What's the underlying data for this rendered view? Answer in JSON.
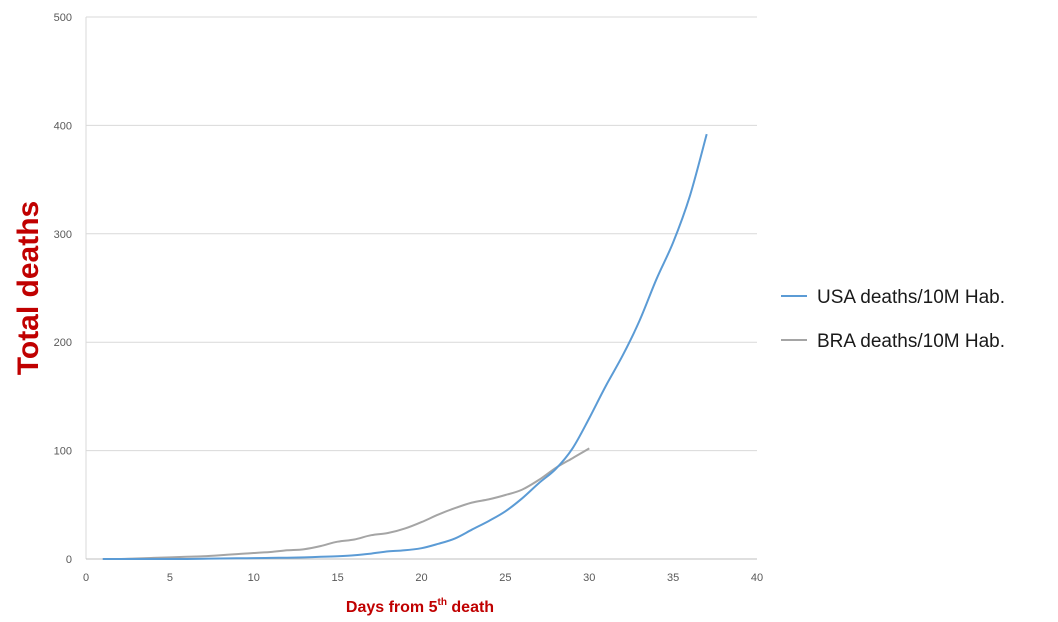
{
  "chart_data": {
    "type": "line",
    "title": "",
    "ylabel": "Total deaths",
    "xlabel": {
      "before": "Days from 5",
      "sup": "th",
      "after": " death"
    },
    "label_color": "#c00000",
    "xlim": [
      0,
      40
    ],
    "ylim": [
      0,
      500
    ],
    "xticks": [
      0,
      5,
      10,
      15,
      20,
      25,
      30,
      35,
      40
    ],
    "yticks": [
      0,
      100,
      200,
      300,
      400,
      500
    ],
    "grid": "horizontal",
    "legend_position": "right",
    "series": [
      {
        "name": "USA deaths/10M Hab.",
        "color": "#5b9bd5",
        "x": [
          1,
          2,
          3,
          4,
          5,
          6,
          7,
          8,
          9,
          10,
          11,
          12,
          13,
          14,
          15,
          16,
          17,
          18,
          19,
          20,
          21,
          22,
          23,
          24,
          25,
          26,
          27,
          28,
          29,
          30,
          31,
          32,
          33,
          34,
          35,
          36,
          37
        ],
        "y": [
          0,
          0,
          0,
          0,
          0,
          0,
          0.3,
          0.5,
          0.7,
          0.8,
          1,
          1.2,
          1.5,
          2,
          2.5,
          3.5,
          5,
          7,
          8,
          10,
          14,
          19,
          27,
          35,
          44,
          56,
          70,
          83,
          102,
          130,
          160,
          188,
          220,
          258,
          292,
          335,
          392
        ]
      },
      {
        "name": "BRA deaths/10M Hab.",
        "color": "#a5a5a5",
        "x": [
          1,
          2,
          3,
          4,
          5,
          6,
          7,
          8,
          9,
          10,
          11,
          12,
          13,
          14,
          15,
          16,
          17,
          18,
          19,
          20,
          21,
          22,
          23,
          24,
          25,
          26,
          27,
          28,
          29,
          30
        ],
        "y": [
          0,
          0,
          0.5,
          1,
          1.5,
          2,
          2.5,
          3.5,
          4.5,
          5.5,
          6.5,
          8,
          9,
          12,
          16,
          18,
          22,
          24,
          28,
          34,
          41,
          47,
          52,
          55,
          59,
          64,
          73,
          84,
          93,
          102
        ]
      }
    ]
  }
}
